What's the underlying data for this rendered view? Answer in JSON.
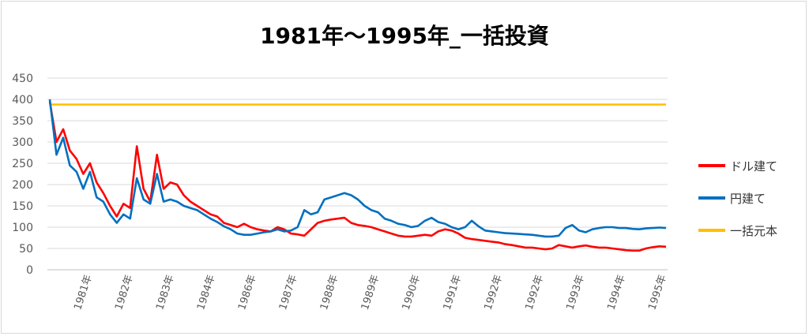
{
  "chart_data": {
    "type": "line",
    "title": "1981年～1995年_一括投資",
    "xlabel": "",
    "ylabel": "",
    "ylim": [
      0,
      450
    ],
    "yticks": [
      0,
      50,
      100,
      150,
      200,
      250,
      300,
      350,
      400,
      450
    ],
    "x_tick_labels": [
      "1981年",
      "1982年",
      "1983年",
      "1984年",
      "1986年",
      "1987年",
      "1988年",
      "1989年",
      "1990年",
      "1991年",
      "1992年",
      "1992年",
      "1993年",
      "1994年",
      "1995年"
    ],
    "grid": true,
    "legend_position": "right",
    "series": [
      {
        "name": "ドル建て",
        "color": "#ff0000",
        "values": [
          395,
          300,
          330,
          280,
          260,
          225,
          250,
          205,
          180,
          150,
          125,
          155,
          145,
          290,
          190,
          160,
          270,
          190,
          205,
          200,
          175,
          160,
          150,
          140,
          130,
          125,
          110,
          105,
          100,
          108,
          100,
          95,
          92,
          90,
          100,
          95,
          85,
          83,
          80,
          95,
          110,
          115,
          118,
          120,
          122,
          110,
          105,
          103,
          100,
          95,
          90,
          85,
          80,
          78,
          78,
          80,
          82,
          80,
          90,
          95,
          92,
          85,
          75,
          72,
          70,
          68,
          66,
          64,
          60,
          58,
          55,
          52,
          52,
          50,
          48,
          50,
          58,
          55,
          52,
          55,
          57,
          54,
          52,
          52,
          50,
          48,
          46,
          45,
          45,
          50,
          53,
          55,
          54
        ]
      },
      {
        "name": "円建て",
        "color": "#0070c0",
        "values": [
          400,
          270,
          310,
          245,
          230,
          190,
          230,
          170,
          160,
          130,
          110,
          130,
          120,
          215,
          165,
          155,
          225,
          160,
          165,
          160,
          150,
          145,
          140,
          130,
          120,
          112,
          102,
          95,
          85,
          82,
          82,
          85,
          88,
          90,
          95,
          90,
          92,
          100,
          140,
          130,
          135,
          165,
          170,
          175,
          180,
          175,
          165,
          150,
          140,
          135,
          120,
          115,
          108,
          105,
          100,
          103,
          115,
          122,
          112,
          108,
          100,
          95,
          100,
          115,
          102,
          92,
          90,
          88,
          86,
          85,
          84,
          83,
          82,
          80,
          78,
          78,
          80,
          98,
          105,
          92,
          88,
          95,
          98,
          100,
          100,
          98,
          98,
          96,
          95,
          97,
          98,
          99,
          98
        ]
      },
      {
        "name": "一括元本",
        "color": "#ffc000",
        "values": [
          388,
          388
        ]
      }
    ]
  }
}
